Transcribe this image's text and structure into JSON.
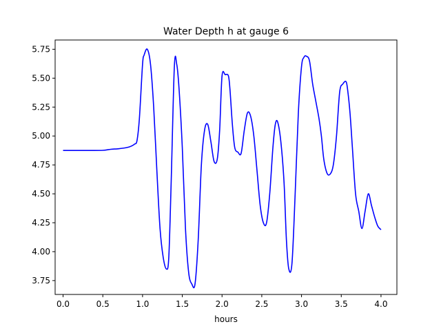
{
  "chart_data": {
    "type": "line",
    "title": "Water Depth h at gauge 6",
    "xlabel": "hours",
    "ylabel": "",
    "xlim": [
      -0.1,
      4.2
    ],
    "ylim": [
      3.63,
      5.83
    ],
    "xticks": [
      0.0,
      0.5,
      1.0,
      1.5,
      2.0,
      2.5,
      3.0,
      3.5,
      4.0
    ],
    "xtick_labels": [
      "0.0",
      "0.5",
      "1.0",
      "1.5",
      "2.0",
      "2.5",
      "3.0",
      "3.5",
      "4.0"
    ],
    "yticks": [
      3.75,
      4.0,
      4.25,
      4.5,
      4.75,
      5.0,
      5.25,
      5.5,
      5.75
    ],
    "ytick_labels": [
      "3.75",
      "4.00",
      "4.25",
      "4.50",
      "4.75",
      "5.00",
      "5.25",
      "5.50",
      "5.75"
    ],
    "grid": false,
    "series": [
      {
        "color": "#0000ff",
        "x": [
          0.0,
          0.3,
          0.5,
          0.6,
          0.7,
          0.8,
          0.85,
          0.9,
          0.93,
          0.96,
          1.0,
          1.02,
          1.06,
          1.1,
          1.14,
          1.18,
          1.22,
          1.26,
          1.3,
          1.33,
          1.36,
          1.4,
          1.43,
          1.46,
          1.5,
          1.54,
          1.58,
          1.62,
          1.66,
          1.7,
          1.74,
          1.78,
          1.82,
          1.86,
          1.9,
          1.94,
          1.97,
          2.0,
          2.04,
          2.08,
          2.1,
          2.13,
          2.16,
          2.2,
          2.24,
          2.28,
          2.32,
          2.36,
          2.4,
          2.44,
          2.48,
          2.52,
          2.56,
          2.6,
          2.64,
          2.67,
          2.7,
          2.74,
          2.78,
          2.81,
          2.84,
          2.88,
          2.92,
          2.96,
          3.0,
          3.03,
          3.06,
          3.1,
          3.14,
          3.18,
          3.22,
          3.25,
          3.28,
          3.32,
          3.36,
          3.4,
          3.44,
          3.48,
          3.52,
          3.56,
          3.58,
          3.61,
          3.64,
          3.68,
          3.72,
          3.76,
          3.8,
          3.84,
          3.88,
          3.92,
          3.96,
          4.0
        ],
        "y": [
          4.875,
          4.875,
          4.876,
          4.885,
          4.89,
          4.9,
          4.91,
          4.93,
          4.96,
          5.15,
          5.62,
          5.7,
          5.75,
          5.62,
          5.25,
          4.7,
          4.2,
          3.95,
          3.85,
          3.95,
          4.6,
          5.6,
          5.62,
          5.4,
          4.9,
          4.2,
          3.82,
          3.72,
          3.72,
          4.1,
          4.75,
          5.05,
          5.1,
          4.95,
          4.78,
          4.8,
          5.05,
          5.52,
          5.53,
          5.52,
          5.4,
          5.1,
          4.9,
          4.86,
          4.85,
          5.05,
          5.2,
          5.17,
          5.0,
          4.7,
          4.4,
          4.25,
          4.25,
          4.5,
          4.9,
          5.1,
          5.12,
          4.95,
          4.6,
          4.1,
          3.85,
          3.9,
          4.5,
          5.2,
          5.6,
          5.68,
          5.69,
          5.65,
          5.45,
          5.3,
          5.15,
          5.0,
          4.8,
          4.68,
          4.67,
          4.75,
          5.0,
          5.38,
          5.45,
          5.47,
          5.4,
          5.2,
          4.9,
          4.5,
          4.35,
          4.2,
          4.35,
          4.5,
          4.4,
          4.3,
          4.22,
          4.19
        ]
      }
    ]
  }
}
